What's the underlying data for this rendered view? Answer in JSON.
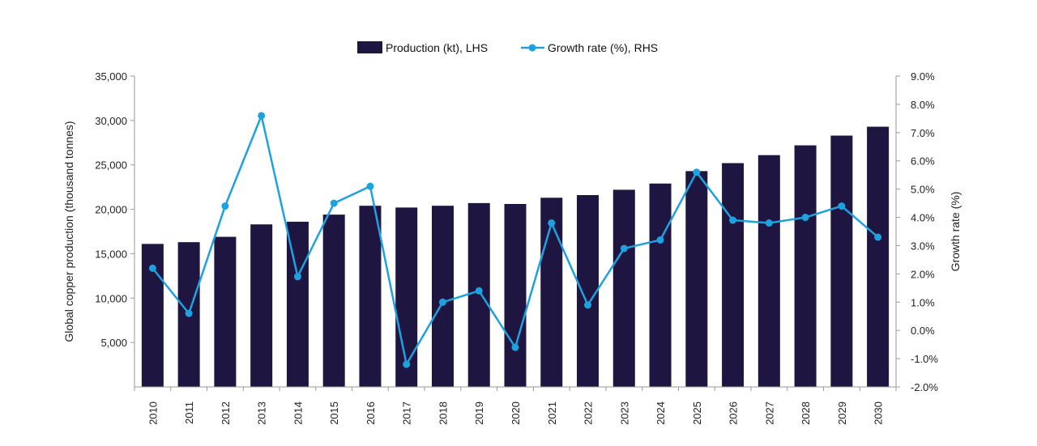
{
  "chart_data": {
    "type": "bar+line",
    "title": "",
    "categories": [
      "2010",
      "2011",
      "2012",
      "2013",
      "2014",
      "2015",
      "2016",
      "2017",
      "2018",
      "2019",
      "2020",
      "2021",
      "2022",
      "2023",
      "2024",
      "2025",
      "2026",
      "2027",
      "2028",
      "2029",
      "2030"
    ],
    "series": [
      {
        "name": "Production (kt), LHS",
        "type": "bar",
        "axis": "left",
        "color": "#1e1640",
        "values": [
          16100,
          16300,
          16900,
          18300,
          18600,
          19400,
          20400,
          20200,
          20400,
          20700,
          20600,
          21300,
          21600,
          22200,
          22900,
          24300,
          25200,
          26100,
          27200,
          28300,
          29300
        ]
      },
      {
        "name": "Growth rate (%), RHS",
        "type": "line",
        "axis": "right",
        "color": "#1ea1df",
        "values": [
          2.2,
          0.6,
          4.4,
          7.6,
          1.9,
          4.5,
          5.1,
          -1.2,
          1.0,
          1.4,
          -0.6,
          3.8,
          0.9,
          2.9,
          3.2,
          5.6,
          3.9,
          3.8,
          4.0,
          4.4,
          3.3
        ]
      }
    ],
    "y_left": {
      "label": "Global copper production (thousand tonnes)",
      "range": [
        0,
        35000
      ],
      "ticks": [
        5000,
        10000,
        15000,
        20000,
        25000,
        30000,
        35000
      ],
      "tick_labels": [
        "5,000",
        "10,000",
        "15,000",
        "20,000",
        "25,000",
        "30,000",
        "35,000"
      ]
    },
    "y_right": {
      "label": "Growth rate (%)",
      "range": [
        -2.0,
        9.0
      ],
      "ticks": [
        -2,
        -1,
        0,
        1,
        2,
        3,
        4,
        5,
        6,
        7,
        8,
        9
      ],
      "tick_labels": [
        "-2.0%",
        "-1.0%",
        "0.0%",
        "1.0%",
        "2.0%",
        "3.0%",
        "4.0%",
        "5.0%",
        "6.0%",
        "7.0%",
        "8.0%",
        "9.0%"
      ]
    },
    "legend_position": "top-center",
    "grid": false
  }
}
